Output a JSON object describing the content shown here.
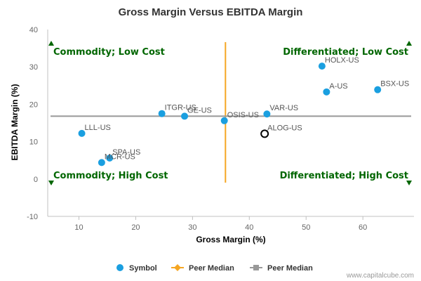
{
  "chart_data": {
    "type": "scatter",
    "title": "Gross Margin Versus EBITDA Margin",
    "xlabel": "Gross Margin (%)",
    "ylabel": "EBITDA Margin (%)",
    "xlim": [
      4.5,
      69
    ],
    "ylim": [
      -10,
      40
    ],
    "xticks": [
      10,
      20,
      30,
      40,
      50,
      60
    ],
    "yticks": [
      -10,
      0,
      10,
      20,
      30,
      40
    ],
    "grid": false,
    "points": [
      {
        "label": "HOLX-US",
        "x": 52.8,
        "y": 30.2
      },
      {
        "label": "BSX-US",
        "x": 62.6,
        "y": 23.9
      },
      {
        "label": "A-US",
        "x": 53.6,
        "y": 23.3
      },
      {
        "label": "VAR-US",
        "x": 43.1,
        "y": 17.4
      },
      {
        "label": "ITGR-US",
        "x": 24.6,
        "y": 17.5
      },
      {
        "label": "GE-US",
        "x": 28.6,
        "y": 16.8
      },
      {
        "label": "OSIS-US",
        "x": 35.6,
        "y": 15.6
      },
      {
        "label": "LLL-US",
        "x": 10.5,
        "y": 12.2
      },
      {
        "label": "SPA-US",
        "x": 15.4,
        "y": 5.6
      },
      {
        "label": "MCR-US",
        "x": 14.0,
        "y": 4.4
      }
    ],
    "highlight": {
      "label": "ALOG-US",
      "x": 42.7,
      "y": 12.1
    },
    "peer_median_x": 35.8,
    "peer_median_y": 16.8,
    "quadrants": {
      "top_left": "Commodity; Low Cost",
      "top_right": "Differentiated; Low Cost",
      "bottom_left": "Commodity; High Cost",
      "bottom_right": "Differentiated; High Cost"
    },
    "legend": {
      "position": "bottom",
      "items": [
        {
          "label": "Symbol",
          "color": "#1a9fe0"
        },
        {
          "label": "Peer Median",
          "color": "#f5a623"
        },
        {
          "label": "Peer Median",
          "color": "#999999"
        }
      ]
    },
    "colors": {
      "points": "#1a9fe0",
      "vertical_median": "#f5a623",
      "horizontal_median": "#999999",
      "quadrant_text": "#006600",
      "triangle": "#006600"
    }
  },
  "credit": "www.capitalcube.com"
}
